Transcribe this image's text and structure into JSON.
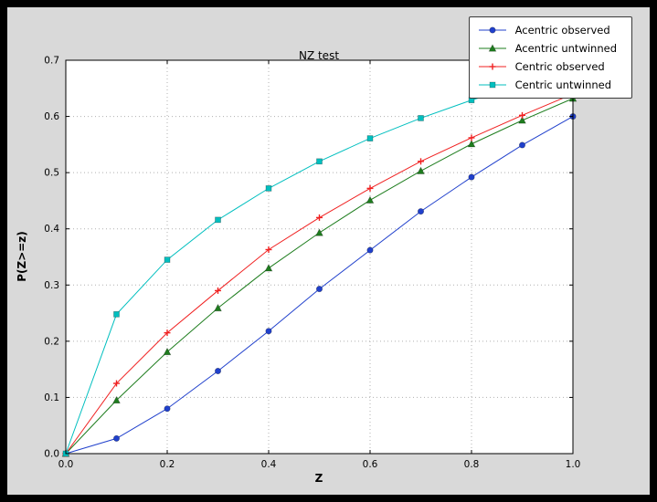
{
  "window": {
    "outer_background": "#000000",
    "figure_background": "#d9d9d9",
    "axes_background": "#ffffff",
    "grid_color": "#b0b0b0"
  },
  "chart_data": {
    "type": "line",
    "title": "NZ test",
    "xlabel": "Z",
    "ylabel": "P(Z>=z)",
    "xlim": [
      0.0,
      1.0
    ],
    "ylim": [
      0.0,
      0.7
    ],
    "grid": true,
    "legend_position": "upper right",
    "xtick_labels": [
      "0.0",
      "0.2",
      "0.4",
      "0.6",
      "0.8",
      "1.0"
    ],
    "ytick_labels": [
      "0.0",
      "0.1",
      "0.2",
      "0.3",
      "0.4",
      "0.5",
      "0.6",
      "0.7"
    ],
    "x": [
      0.0,
      0.1,
      0.2,
      0.3,
      0.4,
      0.5,
      0.6,
      0.7,
      0.8,
      0.9,
      1.0
    ],
    "series": [
      {
        "name": "Acentric observed",
        "color": "#2040cc",
        "marker": "circle",
        "values": [
          0.0,
          0.027,
          0.08,
          0.147,
          0.218,
          0.293,
          0.362,
          0.431,
          0.492,
          0.549,
          0.6
        ]
      },
      {
        "name": "Acentric untwinned",
        "color": "#1e7d1e",
        "marker": "triangle-up",
        "values": [
          0.0,
          0.095,
          0.181,
          0.259,
          0.33,
          0.393,
          0.451,
          0.503,
          0.551,
          0.593,
          0.632
        ]
      },
      {
        "name": "Centric observed",
        "color": "#f02020",
        "marker": "plus",
        "values": [
          0.0,
          0.125,
          0.215,
          0.29,
          0.363,
          0.42,
          0.472,
          0.52,
          0.562,
          0.602,
          0.64
        ]
      },
      {
        "name": "Centric untwinned",
        "color": "#00bfbf",
        "marker": "square",
        "values": [
          0.0,
          0.248,
          0.345,
          0.416,
          0.472,
          0.52,
          0.561,
          0.597,
          0.629,
          0.657,
          0.683
        ]
      }
    ]
  }
}
